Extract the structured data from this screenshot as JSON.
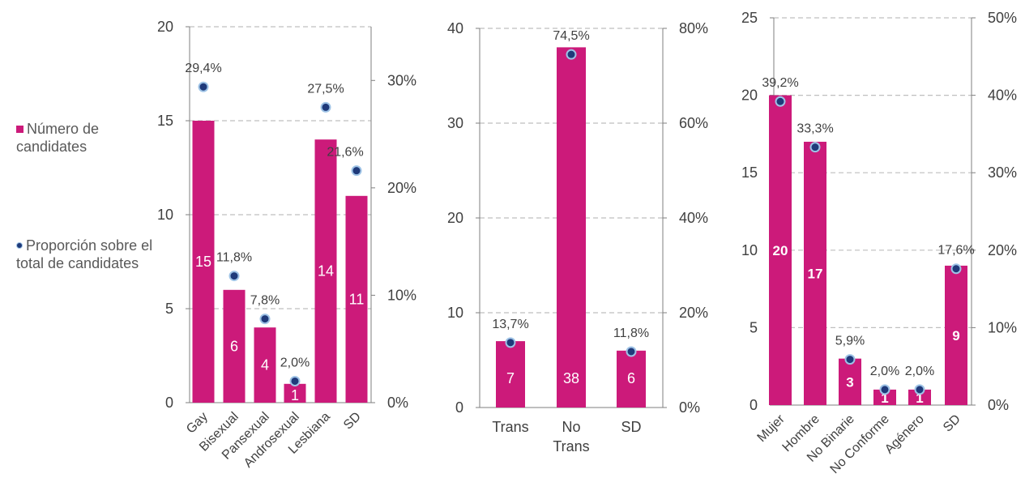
{
  "colors": {
    "bar": "#cc1a7a",
    "dot": "#1f3a7a",
    "dot_edge": "#9ec3e6",
    "grid": "#bfbfbf",
    "axis": "#7f7f7f",
    "text": "#404040"
  },
  "legend": {
    "bar_label": "Número de candidates",
    "dot_label": "Proporción sobre el total de candidates"
  },
  "chart_data": [
    {
      "type": "bar",
      "categories": [
        "Gay",
        "Bisexual",
        "Pansexual",
        "Androsexual",
        "Lesbiana",
        "SD"
      ],
      "series": [
        {
          "values": [
            15,
            6,
            4,
            1,
            14,
            11
          ],
          "value_labels": [
            "15",
            "6",
            "4",
            "1",
            "14",
            "11"
          ]
        },
        {
          "values": [
            29.4,
            11.8,
            7.8,
            2.0,
            27.5,
            21.6
          ],
          "value_labels": [
            "29,4%",
            "11,8%",
            "7,8%",
            "2,0%",
            "27,5%",
            "21,6%"
          ]
        }
      ],
      "y_left": {
        "min": 0,
        "max": 20,
        "ticks": [
          0,
          5,
          10,
          15,
          20
        ],
        "tick_labels": [
          "0",
          "5",
          "10",
          "15",
          "20"
        ]
      },
      "y_right": {
        "min": 0,
        "max": 35,
        "ticks": [
          0,
          10,
          20,
          30
        ],
        "tick_labels": [
          "0%",
          "10%",
          "20%",
          "30%"
        ]
      },
      "grid": true,
      "category_label_rotation": "diagonal"
    },
    {
      "type": "bar",
      "categories": [
        "Trans",
        "No Trans",
        "SD"
      ],
      "series": [
        {
          "values": [
            7,
            38,
            6
          ],
          "value_labels": [
            "7",
            "38",
            "6"
          ]
        },
        {
          "values": [
            13.7,
            74.5,
            11.8
          ],
          "value_labels": [
            "13,7%",
            "74,5%",
            "11,8%"
          ]
        }
      ],
      "y_left": {
        "min": 0,
        "max": 40,
        "ticks": [
          0,
          10,
          20,
          30,
          40
        ],
        "tick_labels": [
          "0",
          "10",
          "20",
          "30",
          "40"
        ]
      },
      "y_right": {
        "min": 0,
        "max": 80,
        "ticks": [
          0,
          20,
          40,
          60,
          80
        ],
        "tick_labels": [
          "0%",
          "20%",
          "40%",
          "60%",
          "80%"
        ]
      },
      "grid": true,
      "category_label_rotation": "none"
    },
    {
      "type": "bar",
      "categories": [
        "Mujer",
        "Hombre",
        "No Binarie",
        "No Conforme",
        "Agénero",
        "SD"
      ],
      "series": [
        {
          "values": [
            20,
            17,
            3,
            1,
            1,
            9
          ],
          "value_labels": [
            "20",
            "17",
            "3",
            "1",
            "1",
            "9"
          ]
        },
        {
          "values": [
            39.2,
            33.3,
            5.9,
            2.0,
            2.0,
            17.6
          ],
          "value_labels": [
            "39,2%",
            "33,3%",
            "5,9%",
            "2,0%",
            "2,0%",
            "17,6%"
          ]
        }
      ],
      "y_left": {
        "min": 0,
        "max": 25,
        "ticks": [
          0,
          5,
          10,
          15,
          20,
          25
        ],
        "tick_labels": [
          "0",
          "5",
          "10",
          "15",
          "20",
          "25"
        ]
      },
      "y_right": {
        "min": 0,
        "max": 50,
        "ticks": [
          0,
          10,
          20,
          30,
          40,
          50
        ],
        "tick_labels": [
          "0%",
          "10%",
          "20%",
          "30%",
          "40%",
          "50%"
        ]
      },
      "grid": true,
      "category_label_rotation": "diagonal"
    }
  ]
}
